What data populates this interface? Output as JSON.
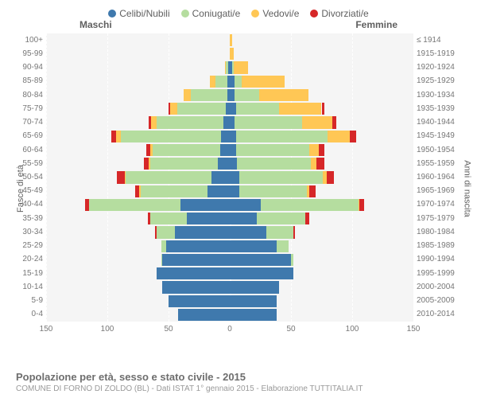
{
  "legend": [
    {
      "label": "Celibi/Nubili",
      "color": "#3f79ad"
    },
    {
      "label": "Coniugati/e",
      "color": "#b5dd9f"
    },
    {
      "label": "Vedovi/e",
      "color": "#ffc755"
    },
    {
      "label": "Divorziati/e",
      "color": "#d62728"
    }
  ],
  "top_labels": {
    "left": "Maschi",
    "right": "Femmine"
  },
  "axis_titles": {
    "left": "Fasce di età",
    "right": "Anni di nascita"
  },
  "title": "Popolazione per età, sesso e stato civile - 2015",
  "subtitle": "COMUNE DI FORNO DI ZOLDO (BL) - Dati ISTAT 1° gennaio 2015 - Elaborazione TUTTITALIA.IT",
  "x_max": 150,
  "x_ticks": [
    150,
    100,
    50,
    0,
    50,
    100,
    150
  ],
  "colors": {
    "single": "#3f79ad",
    "married": "#b5dd9f",
    "widowed": "#ffc755",
    "divorced": "#d62728",
    "grid": "#ffffff",
    "bg": "#f5f5f5"
  },
  "rows": [
    {
      "age": "100+",
      "born": "≤ 1914",
      "m": {
        "s": 0,
        "c": 0,
        "w": 0,
        "d": 0
      },
      "f": {
        "s": 0,
        "c": 0,
        "w": 2,
        "d": 0
      }
    },
    {
      "age": "95-99",
      "born": "1915-1919",
      "m": {
        "s": 0,
        "c": 0,
        "w": 0,
        "d": 0
      },
      "f": {
        "s": 0,
        "c": 0,
        "w": 3,
        "d": 0
      }
    },
    {
      "age": "90-94",
      "born": "1920-1924",
      "m": {
        "s": 1,
        "c": 2,
        "w": 1,
        "d": 0
      },
      "f": {
        "s": 2,
        "c": 1,
        "w": 12,
        "d": 0
      }
    },
    {
      "age": "85-89",
      "born": "1925-1929",
      "m": {
        "s": 2,
        "c": 10,
        "w": 4,
        "d": 0
      },
      "f": {
        "s": 4,
        "c": 6,
        "w": 35,
        "d": 0
      }
    },
    {
      "age": "80-84",
      "born": "1930-1934",
      "m": {
        "s": 2,
        "c": 30,
        "w": 6,
        "d": 0
      },
      "f": {
        "s": 4,
        "c": 20,
        "w": 40,
        "d": 0
      }
    },
    {
      "age": "75-79",
      "born": "1935-1939",
      "m": {
        "s": 3,
        "c": 40,
        "w": 6,
        "d": 1
      },
      "f": {
        "s": 5,
        "c": 35,
        "w": 35,
        "d": 2
      }
    },
    {
      "age": "70-74",
      "born": "1940-1944",
      "m": {
        "s": 5,
        "c": 55,
        "w": 4,
        "d": 2
      },
      "f": {
        "s": 4,
        "c": 55,
        "w": 25,
        "d": 3
      }
    },
    {
      "age": "65-69",
      "born": "1945-1949",
      "m": {
        "s": 7,
        "c": 82,
        "w": 4,
        "d": 4
      },
      "f": {
        "s": 5,
        "c": 75,
        "w": 18,
        "d": 5
      }
    },
    {
      "age": "60-64",
      "born": "1950-1954",
      "m": {
        "s": 8,
        "c": 55,
        "w": 2,
        "d": 3
      },
      "f": {
        "s": 5,
        "c": 60,
        "w": 8,
        "d": 4
      }
    },
    {
      "age": "55-59",
      "born": "1955-1959",
      "m": {
        "s": 10,
        "c": 55,
        "w": 1,
        "d": 4
      },
      "f": {
        "s": 6,
        "c": 60,
        "w": 5,
        "d": 6
      }
    },
    {
      "age": "50-54",
      "born": "1960-1964",
      "m": {
        "s": 15,
        "c": 70,
        "w": 1,
        "d": 6
      },
      "f": {
        "s": 8,
        "c": 68,
        "w": 3,
        "d": 6
      }
    },
    {
      "age": "45-49",
      "born": "1965-1969",
      "m": {
        "s": 18,
        "c": 55,
        "w": 1,
        "d": 3
      },
      "f": {
        "s": 8,
        "c": 55,
        "w": 2,
        "d": 5
      }
    },
    {
      "age": "40-44",
      "born": "1970-1974",
      "m": {
        "s": 40,
        "c": 75,
        "w": 0,
        "d": 3
      },
      "f": {
        "s": 25,
        "c": 80,
        "w": 1,
        "d": 4
      }
    },
    {
      "age": "35-39",
      "born": "1975-1979",
      "m": {
        "s": 35,
        "c": 30,
        "w": 0,
        "d": 2
      },
      "f": {
        "s": 22,
        "c": 40,
        "w": 0,
        "d": 3
      }
    },
    {
      "age": "30-34",
      "born": "1980-1984",
      "m": {
        "s": 45,
        "c": 15,
        "w": 0,
        "d": 1
      },
      "f": {
        "s": 30,
        "c": 22,
        "w": 0,
        "d": 1
      }
    },
    {
      "age": "25-29",
      "born": "1985-1989",
      "m": {
        "s": 52,
        "c": 4,
        "w": 0,
        "d": 0
      },
      "f": {
        "s": 38,
        "c": 10,
        "w": 0,
        "d": 0
      }
    },
    {
      "age": "20-24",
      "born": "1990-1994",
      "m": {
        "s": 55,
        "c": 1,
        "w": 0,
        "d": 0
      },
      "f": {
        "s": 50,
        "c": 2,
        "w": 0,
        "d": 0
      }
    },
    {
      "age": "15-19",
      "born": "1995-1999",
      "m": {
        "s": 60,
        "c": 0,
        "w": 0,
        "d": 0
      },
      "f": {
        "s": 52,
        "c": 0,
        "w": 0,
        "d": 0
      }
    },
    {
      "age": "10-14",
      "born": "2000-2004",
      "m": {
        "s": 55,
        "c": 0,
        "w": 0,
        "d": 0
      },
      "f": {
        "s": 40,
        "c": 0,
        "w": 0,
        "d": 0
      }
    },
    {
      "age": "5-9",
      "born": "2005-2009",
      "m": {
        "s": 50,
        "c": 0,
        "w": 0,
        "d": 0
      },
      "f": {
        "s": 38,
        "c": 0,
        "w": 0,
        "d": 0
      }
    },
    {
      "age": "0-4",
      "born": "2010-2014",
      "m": {
        "s": 42,
        "c": 0,
        "w": 0,
        "d": 0
      },
      "f": {
        "s": 38,
        "c": 0,
        "w": 0,
        "d": 0
      }
    }
  ]
}
